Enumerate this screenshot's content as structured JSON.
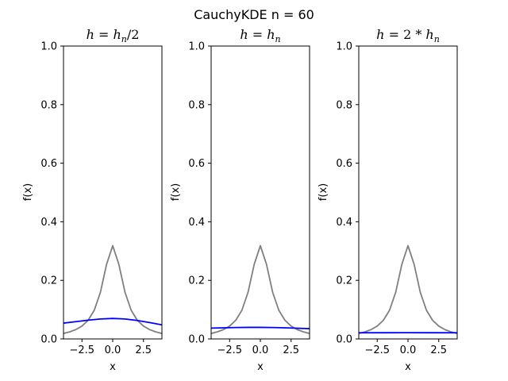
{
  "figure": {
    "suptitle": "CauchyKDE n = 60"
  },
  "colors": {
    "true_density": "#808080",
    "estimate": "#0000ff",
    "axes": "#000000"
  },
  "chart_data": [
    {
      "type": "line",
      "title": "h = h_n/2",
      "xlabel": "x",
      "ylabel": "f(x)",
      "xlim": [
        -4.0,
        4.0
      ],
      "ylim": [
        0,
        1.0
      ],
      "xticks": [
        -2.5,
        0.0,
        2.5
      ],
      "xtick_labels": [
        "−2.5",
        "0.0",
        "2.5"
      ],
      "yticks": [
        0.0,
        0.2,
        0.4,
        0.6,
        0.8,
        1.0
      ],
      "ytick_labels": [
        "0.0",
        "0.2",
        "0.4",
        "0.6",
        "0.8",
        "1.0"
      ],
      "grid": false,
      "series": [
        {
          "role": "true_density",
          "x": [
            -4,
            -3.5,
            -3,
            -2.5,
            -2,
            -1.5,
            -1,
            -0.5,
            0,
            0.5,
            1,
            1.5,
            2,
            2.5,
            3,
            3.5,
            4
          ],
          "y": [
            0.0187,
            0.0241,
            0.0318,
            0.0439,
            0.0637,
            0.0979,
            0.1592,
            0.2546,
            0.3183,
            0.2546,
            0.1592,
            0.0979,
            0.0637,
            0.0439,
            0.0318,
            0.0241,
            0.0187
          ]
        },
        {
          "role": "estimate",
          "x": [
            -4,
            -3,
            -2,
            -1,
            0,
            1,
            2,
            3,
            4
          ],
          "y": [
            0.054,
            0.059,
            0.064,
            0.068,
            0.07,
            0.068,
            0.063,
            0.056,
            0.048
          ]
        }
      ]
    },
    {
      "type": "line",
      "title": "h = h_n",
      "xlabel": "x",
      "ylabel": "f(x)",
      "xlim": [
        -4.0,
        4.0
      ],
      "ylim": [
        0,
        1.0
      ],
      "xticks": [
        -2.5,
        0.0,
        2.5
      ],
      "xtick_labels": [
        "−2.5",
        "0.0",
        "2.5"
      ],
      "yticks": [
        0.0,
        0.2,
        0.4,
        0.6,
        0.8,
        1.0
      ],
      "ytick_labels": [
        "0.0",
        "0.2",
        "0.4",
        "0.6",
        "0.8",
        "1.0"
      ],
      "grid": false,
      "series": [
        {
          "role": "true_density",
          "x": [
            -4,
            -3.5,
            -3,
            -2.5,
            -2,
            -1.5,
            -1,
            -0.5,
            0,
            0.5,
            1,
            1.5,
            2,
            2.5,
            3,
            3.5,
            4
          ],
          "y": [
            0.0187,
            0.0241,
            0.0318,
            0.0439,
            0.0637,
            0.0979,
            0.1592,
            0.2546,
            0.3183,
            0.2546,
            0.1592,
            0.0979,
            0.0637,
            0.0439,
            0.0318,
            0.0241,
            0.0187
          ]
        },
        {
          "role": "estimate",
          "x": [
            -4,
            -3,
            -2,
            -1,
            0,
            1,
            2,
            3,
            4
          ],
          "y": [
            0.037,
            0.038,
            0.039,
            0.0395,
            0.0395,
            0.039,
            0.038,
            0.0365,
            0.035
          ]
        }
      ]
    },
    {
      "type": "line",
      "title": "h = 2 * h_n",
      "xlabel": "x",
      "ylabel": "f(x)",
      "xlim": [
        -4.0,
        4.0
      ],
      "ylim": [
        0,
        1.0
      ],
      "xticks": [
        -2.5,
        0.0,
        2.5
      ],
      "xtick_labels": [
        "−2.5",
        "0.0",
        "2.5"
      ],
      "yticks": [
        0.0,
        0.2,
        0.4,
        0.6,
        0.8,
        1.0
      ],
      "ytick_labels": [
        "0.0",
        "0.2",
        "0.4",
        "0.6",
        "0.8",
        "1.0"
      ],
      "grid": false,
      "series": [
        {
          "role": "true_density",
          "x": [
            -4,
            -3.5,
            -3,
            -2.5,
            -2,
            -1.5,
            -1,
            -0.5,
            0,
            0.5,
            1,
            1.5,
            2,
            2.5,
            3,
            3.5,
            4
          ],
          "y": [
            0.0187,
            0.0241,
            0.0318,
            0.0439,
            0.0637,
            0.0979,
            0.1592,
            0.2546,
            0.3183,
            0.2546,
            0.1592,
            0.0979,
            0.0637,
            0.0439,
            0.0318,
            0.0241,
            0.0187
          ]
        },
        {
          "role": "estimate",
          "x": [
            -4,
            -2,
            0,
            2,
            4
          ],
          "y": [
            0.021,
            0.0212,
            0.0213,
            0.0212,
            0.021
          ]
        }
      ]
    }
  ]
}
